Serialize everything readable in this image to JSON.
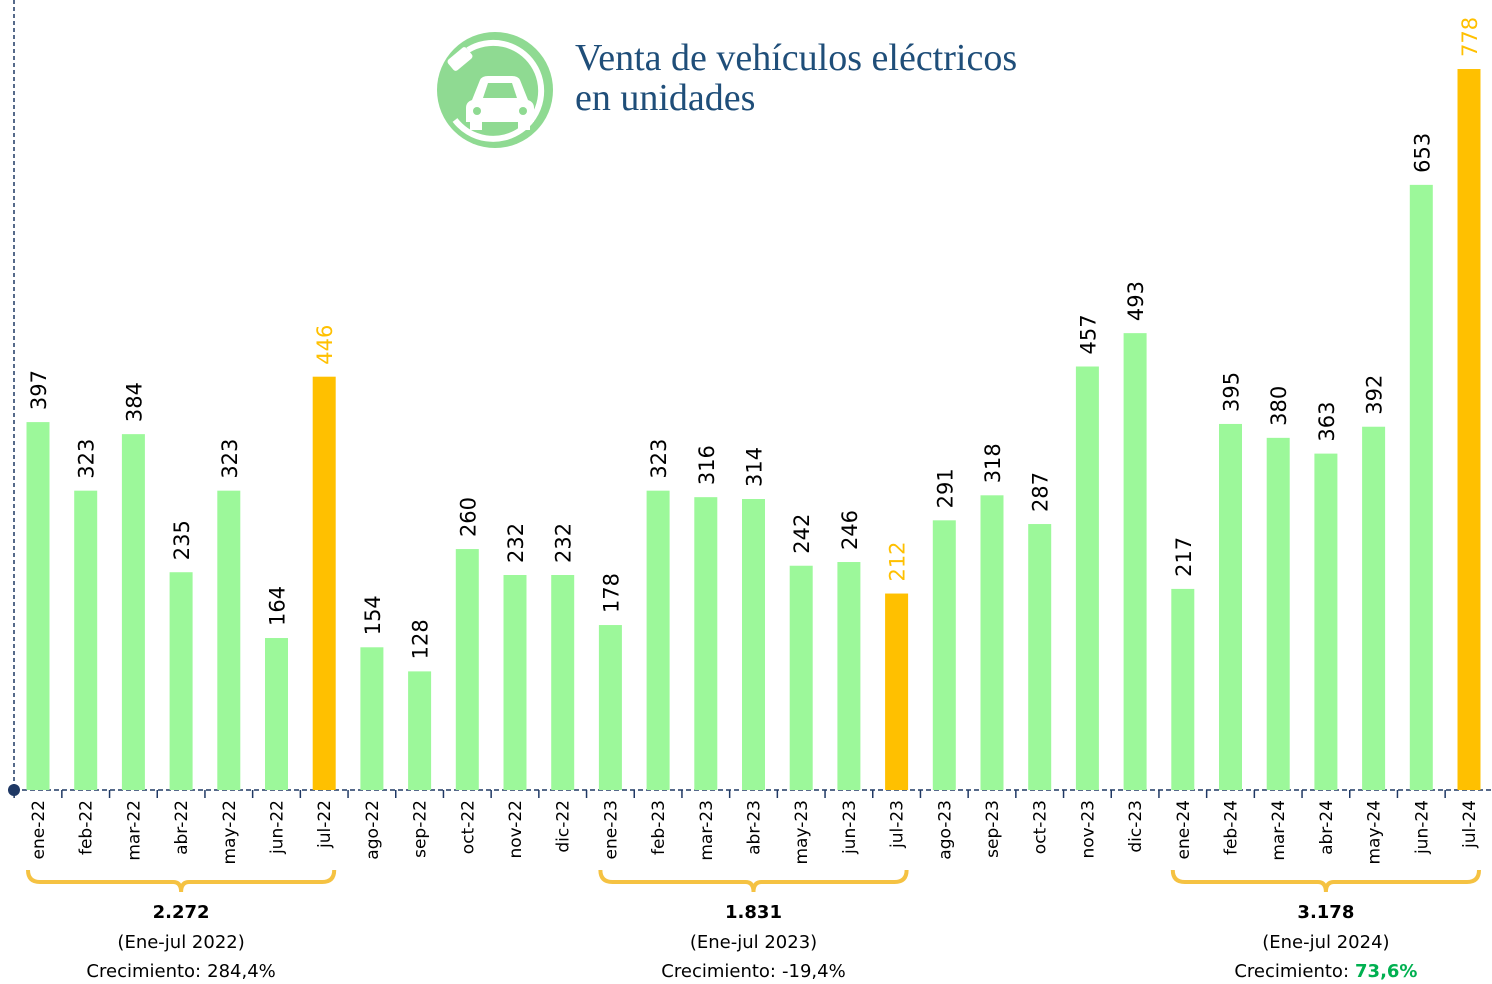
{
  "chart_data": {
    "type": "bar",
    "title": [
      "Venta de vehículos eléctricos",
      "en unidades"
    ],
    "categories": [
      "ene-22",
      "feb-22",
      "mar-22",
      "abr-22",
      "may-22",
      "jun-22",
      "jul-22",
      "ago-22",
      "sep-22",
      "oct-22",
      "nov-22",
      "dic-22",
      "ene-23",
      "feb-23",
      "mar-23",
      "abr-23",
      "may-23",
      "jun-23",
      "jul-23",
      "ago-23",
      "sep-23",
      "oct-23",
      "nov-23",
      "dic-23",
      "ene-24",
      "feb-24",
      "mar-24",
      "abr-24",
      "may-24",
      "jun-24",
      "jul-24"
    ],
    "values": [
      397,
      323,
      384,
      235,
      323,
      164,
      446,
      154,
      128,
      260,
      232,
      232,
      178,
      323,
      316,
      314,
      242,
      246,
      212,
      291,
      318,
      287,
      457,
      493,
      217,
      395,
      380,
      363,
      392,
      653,
      778
    ],
    "colors": [
      "#9cf89a",
      "#9cf89a",
      "#9cf89a",
      "#9cf89a",
      "#9cf89a",
      "#9cf89a",
      "#ffc000",
      "#9cf89a",
      "#9cf89a",
      "#9cf89a",
      "#9cf89a",
      "#9cf89a",
      "#9cf89a",
      "#9cf89a",
      "#9cf89a",
      "#9cf89a",
      "#9cf89a",
      "#9cf89a",
      "#ffc000",
      "#9cf89a",
      "#9cf89a",
      "#9cf89a",
      "#9cf89a",
      "#9cf89a",
      "#9cf89a",
      "#9cf89a",
      "#9cf89a",
      "#9cf89a",
      "#9cf89a",
      "#9cf89a",
      "#ffc000"
    ],
    "summaries": [
      {
        "total": "2.272",
        "period": "(Ene-jul 2022)",
        "growth_label": "Crecimiento:",
        "growth": "284,4%",
        "growth_color": "#000000"
      },
      {
        "total": "1.831",
        "period": "(Ene-jul 2023)",
        "growth_label": "Crecimiento:",
        "growth": "-19,4%",
        "growth_color": "#000000"
      },
      {
        "total": "3.178",
        "period": "(Ene-jul 2024)",
        "growth_label": "Crecimiento:",
        "growth": "73,6%",
        "growth_color": "#00b050"
      }
    ]
  }
}
